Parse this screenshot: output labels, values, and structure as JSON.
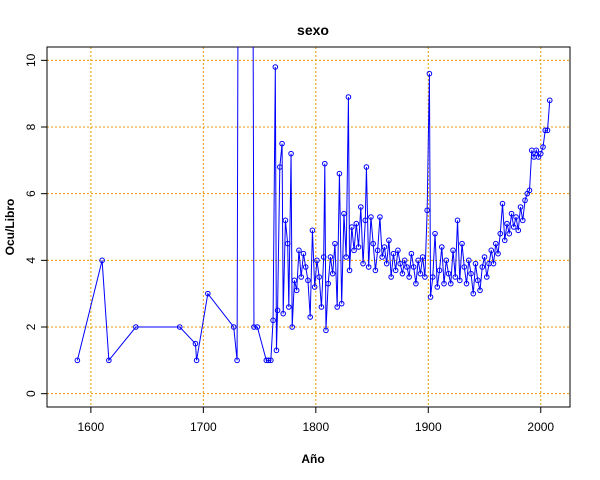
{
  "chart_data": {
    "type": "line",
    "title": "sexo",
    "x_label": "Año",
    "y_label": "Ocu/Libro",
    "x": [
      1588,
      1610,
      1616,
      1640,
      1679,
      1693,
      1694,
      1704,
      1727,
      1730,
      1731,
      1744,
      1745,
      1748,
      1756,
      1758,
      1760,
      1762,
      1764,
      1765,
      1766,
      1768,
      1770,
      1771,
      1773,
      1775,
      1776,
      1778,
      1779,
      1781,
      1783,
      1785,
      1787,
      1789,
      1791,
      1793,
      1795,
      1797,
      1799,
      1801,
      1803,
      1805,
      1807,
      1808,
      1809,
      1811,
      1813,
      1815,
      1817,
      1819,
      1821,
      1823,
      1825,
      1827,
      1829,
      1830,
      1832,
      1834,
      1836,
      1838,
      1840,
      1842,
      1844,
      1845,
      1847,
      1849,
      1851,
      1853,
      1855,
      1857,
      1859,
      1861,
      1863,
      1865,
      1867,
      1869,
      1871,
      1873,
      1875,
      1877,
      1879,
      1881,
      1883,
      1885,
      1887,
      1889,
      1891,
      1893,
      1895,
      1897,
      1899,
      1901,
      1902,
      1904,
      1906,
      1908,
      1910,
      1912,
      1914,
      1916,
      1918,
      1920,
      1922,
      1924,
      1926,
      1928,
      1930,
      1932,
      1934,
      1936,
      1938,
      1940,
      1942,
      1944,
      1946,
      1948,
      1950,
      1952,
      1954,
      1956,
      1958,
      1960,
      1962,
      1964,
      1966,
      1968,
      1970,
      1972,
      1974,
      1976,
      1978,
      1980,
      1982,
      1984,
      1986,
      1988,
      1990,
      1992,
      1994,
      1996,
      1998,
      2000,
      2002,
      2004,
      2006,
      2008
    ],
    "series": [
      {
        "name": "sexo",
        "color": "#0000ff",
        "values": [
          1,
          4,
          1,
          2,
          2,
          1.5,
          1,
          3,
          2,
          1,
          14,
          14,
          2,
          2,
          1,
          1,
          1,
          2.2,
          9.8,
          1.3,
          2.5,
          6.8,
          7.5,
          2.4,
          5.2,
          4.5,
          2.6,
          7.2,
          2,
          3.4,
          3.1,
          4.3,
          3.5,
          4.2,
          3.8,
          3.4,
          2.3,
          4.9,
          3.2,
          4,
          3.5,
          2.6,
          4.1,
          6.9,
          1.9,
          3.3,
          4.1,
          3.6,
          4.5,
          2.6,
          6.6,
          2.7,
          5.4,
          4.1,
          8.9,
          3.7,
          5,
          4.3,
          5.1,
          4.4,
          5.6,
          3.9,
          5.2,
          6.8,
          3.8,
          5.3,
          4.5,
          3.7,
          4.3,
          5.3,
          4.1,
          4.4,
          3.9,
          4.6,
          3.5,
          4.2,
          3.7,
          4.3,
          3.9,
          3.6,
          4,
          3.8,
          3.5,
          4.2,
          3.8,
          3.3,
          4,
          3.6,
          4.1,
          3.5,
          5.5,
          9.6,
          2.9,
          3.5,
          4.8,
          3.2,
          3.7,
          4.4,
          3.3,
          4,
          3.6,
          3.3,
          4.3,
          3.5,
          5.2,
          3.4,
          4.5,
          3.8,
          3.3,
          4,
          3.6,
          3,
          3.9,
          3.4,
          3.1,
          3.8,
          4.1,
          3.5,
          3.9,
          4.3,
          3.9,
          4.5,
          4.2,
          4.8,
          5.7,
          4.6,
          5.1,
          4.8,
          5.4,
          5,
          5.3,
          4.9,
          5.6,
          5.2,
          5.8,
          6,
          6.1,
          7.3,
          7.1,
          7.3,
          7.1,
          7.2,
          7.4,
          7.9,
          7.9,
          8.8
        ]
      }
    ],
    "xlim": [
      1561,
      2026
    ],
    "ylim": [
      -0.4,
      10.4
    ],
    "xticks": [
      1600,
      1700,
      1800,
      1900,
      2000
    ],
    "yticks": [
      0,
      2,
      4,
      6,
      8,
      10
    ],
    "grid": true,
    "grid_color": "#e69f00",
    "label_color": "#ff0000"
  }
}
